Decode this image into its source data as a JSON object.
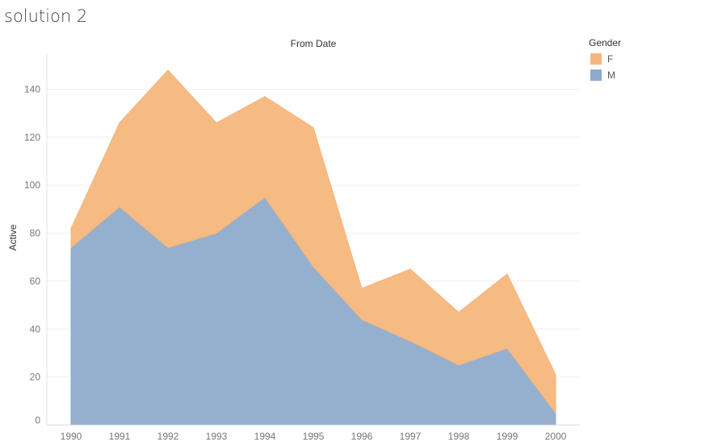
{
  "page": {
    "title": "solution 2"
  },
  "legend": {
    "title": "Gender",
    "items": [
      {
        "label": "F",
        "color": "#f5b67c"
      },
      {
        "label": "M",
        "color": "#8fabcb"
      }
    ]
  },
  "chart_data": {
    "type": "area",
    "stacked": true,
    "title": "From Date",
    "xlabel": "",
    "ylabel": "Active",
    "categories": [
      "1990",
      "1991",
      "1992",
      "1993",
      "1994",
      "1995",
      "1996",
      "1997",
      "1998",
      "1999",
      "2000"
    ],
    "series": [
      {
        "name": "M",
        "color": "#8fabcb",
        "values": [
          74,
          91,
          74,
          80,
          95,
          66,
          44,
          35,
          25,
          32,
          5
        ]
      },
      {
        "name": "F",
        "color": "#f5b67c",
        "values": [
          8,
          35,
          74,
          46,
          42,
          58,
          13,
          30,
          22,
          31,
          16
        ]
      }
    ],
    "ylim": [
      0,
      155
    ],
    "yticks": [
      0,
      20,
      40,
      60,
      80,
      100,
      120,
      140
    ],
    "grid": true,
    "legend_position": "top-right"
  }
}
